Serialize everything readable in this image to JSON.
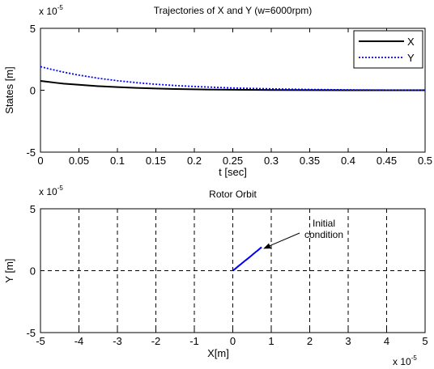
{
  "chart_data": [
    {
      "type": "line",
      "title": "Trajectories of X and Y (w=6000rpm)",
      "xlabel": "t [sec]",
      "ylabel": "States [m]",
      "y_exponent_base": "x 10",
      "y_exponent_power": "-5",
      "xlim": [
        0,
        0.5
      ],
      "ylim": [
        -5,
        5
      ],
      "xticks": [
        "0",
        "0.05",
        "0.1",
        "0.15",
        "0.2",
        "0.25",
        "0.3",
        "0.35",
        "0.4",
        "0.45",
        "0.5"
      ],
      "yticks": [
        "-5",
        "0",
        "5"
      ],
      "grid": false,
      "legend": "top-right",
      "series": [
        {
          "name": "X",
          "color": "#000000",
          "dash": "solid",
          "x": [
            0,
            0.01,
            0.02,
            0.03,
            0.05,
            0.075,
            0.1,
            0.125,
            0.15,
            0.175,
            0.2,
            0.25,
            0.3,
            0.35,
            0.4,
            0.45,
            0.5
          ],
          "y": [
            0.75,
            0.68,
            0.6,
            0.53,
            0.44,
            0.33,
            0.25,
            0.19,
            0.14,
            0.1,
            0.07,
            0.04,
            0.02,
            0.01,
            0.0,
            0.0,
            0.0
          ]
        },
        {
          "name": "Y",
          "color": "#0000ff",
          "dash": "dotted",
          "x": [
            0,
            0.01,
            0.02,
            0.03,
            0.05,
            0.075,
            0.1,
            0.125,
            0.15,
            0.175,
            0.2,
            0.25,
            0.3,
            0.35,
            0.4,
            0.45,
            0.5
          ],
          "y": [
            1.9,
            1.75,
            1.6,
            1.46,
            1.22,
            0.97,
            0.77,
            0.61,
            0.48,
            0.38,
            0.3,
            0.18,
            0.11,
            0.06,
            0.03,
            0.01,
            0.0
          ]
        }
      ]
    },
    {
      "type": "line",
      "title": "Rotor Orbit",
      "xlabel": "X[m]",
      "ylabel": "Y [m]",
      "x_exponent_base": "x 10",
      "x_exponent_power": "-5",
      "y_exponent_base": "x 10",
      "y_exponent_power": "-5",
      "xlim": [
        -5,
        5
      ],
      "ylim": [
        -5,
        5
      ],
      "xticks": [
        "-5",
        "-4",
        "-3",
        "-2",
        "-1",
        "0",
        "1",
        "2",
        "3",
        "4",
        "5"
      ],
      "yticks": [
        "-5",
        "0",
        "5"
      ],
      "grid": true,
      "series": [
        {
          "color": "#0000ff",
          "x": [
            0.0,
            0.05,
            0.1,
            0.15,
            0.2,
            0.25,
            0.3,
            0.35,
            0.4,
            0.45,
            0.5,
            0.55,
            0.6,
            0.65,
            0.7,
            0.75
          ],
          "y": [
            0.0,
            0.12,
            0.25,
            0.38,
            0.5,
            0.63,
            0.76,
            0.88,
            1.0,
            1.13,
            1.26,
            1.39,
            1.52,
            1.64,
            1.77,
            1.9
          ]
        }
      ],
      "annotation": {
        "lines": [
          "Initial",
          "condition"
        ],
        "point": [
          0.75,
          1.9
        ]
      }
    }
  ]
}
